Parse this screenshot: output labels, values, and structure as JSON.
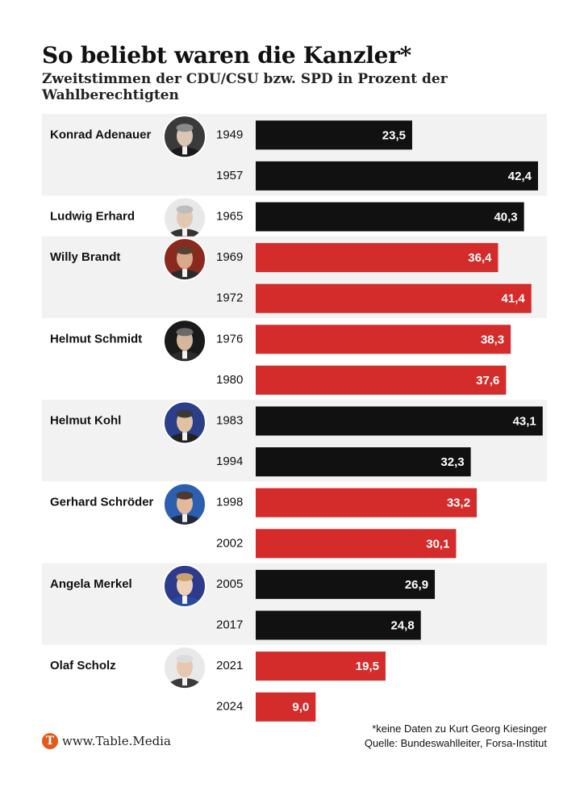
{
  "chart_data": {
    "type": "bar",
    "orientation": "horizontal",
    "title": "So beliebt waren die Kanzler*",
    "subtitle": "Zweitstimmen der CDU/CSU bzw. SPD in Prozent der Wahlberechtigten",
    "xlim": [
      0,
      45
    ],
    "grid": false,
    "colors": {
      "CDU/CSU": "#111111",
      "SPD": "#d42b2b"
    },
    "row_band_color": "#f2f2f2",
    "chancellors": [
      {
        "name": "Konrad Adenauer",
        "party": "CDU/CSU",
        "portrait": "adenauer-portrait",
        "bars": [
          {
            "year": "1949",
            "value": 23.5,
            "label": "23,5"
          },
          {
            "year": "1957",
            "value": 42.4,
            "label": "42,4"
          }
        ]
      },
      {
        "name": "Ludwig Erhard",
        "party": "CDU/CSU",
        "portrait": "erhard-portrait",
        "bars": [
          {
            "year": "1965",
            "value": 40.3,
            "label": "40,3"
          }
        ]
      },
      {
        "name": "Willy Brandt",
        "party": "SPD",
        "portrait": "brandt-portrait",
        "bars": [
          {
            "year": "1969",
            "value": 36.4,
            "label": "36,4"
          },
          {
            "year": "1972",
            "value": 41.4,
            "label": "41,4"
          }
        ]
      },
      {
        "name": "Helmut Schmidt",
        "party": "SPD",
        "portrait": "schmidt-portrait",
        "bars": [
          {
            "year": "1976",
            "value": 38.3,
            "label": "38,3"
          },
          {
            "year": "1980",
            "value": 37.6,
            "label": "37,6"
          }
        ]
      },
      {
        "name": "Helmut Kohl",
        "party": "CDU/CSU",
        "portrait": "kohl-portrait",
        "bars": [
          {
            "year": "1983",
            "value": 43.1,
            "label": "43,1"
          },
          {
            "year": "1994",
            "value": 32.3,
            "label": "32,3"
          }
        ]
      },
      {
        "name": "Gerhard Schröder",
        "party": "SPD",
        "portrait": "schroeder-portrait",
        "bars": [
          {
            "year": "1998",
            "value": 33.2,
            "label": "33,2"
          },
          {
            "year": "2002",
            "value": 30.1,
            "label": "30,1"
          }
        ]
      },
      {
        "name": "Angela Merkel",
        "party": "CDU/CSU",
        "portrait": "merkel-portrait",
        "bars": [
          {
            "year": "2005",
            "value": 26.9,
            "label": "26,9"
          },
          {
            "year": "2017",
            "value": 24.8,
            "label": "24,8"
          }
        ]
      },
      {
        "name": "Olaf Scholz",
        "party": "SPD",
        "portrait": "scholz-portrait",
        "bars": [
          {
            "year": "2021",
            "value": 19.5,
            "label": "19,5"
          },
          {
            "year": "2024",
            "value": 9.0,
            "label": "9,0"
          }
        ]
      }
    ]
  },
  "footer": {
    "note": "*keine Daten zu Kurt Georg Kiesinger",
    "source": "Quelle: Bundeswahlleiter, Forsa-Institut",
    "logo_letter": "T",
    "logo_text": "www.Table.Media",
    "logo_color": "#e3591c"
  }
}
